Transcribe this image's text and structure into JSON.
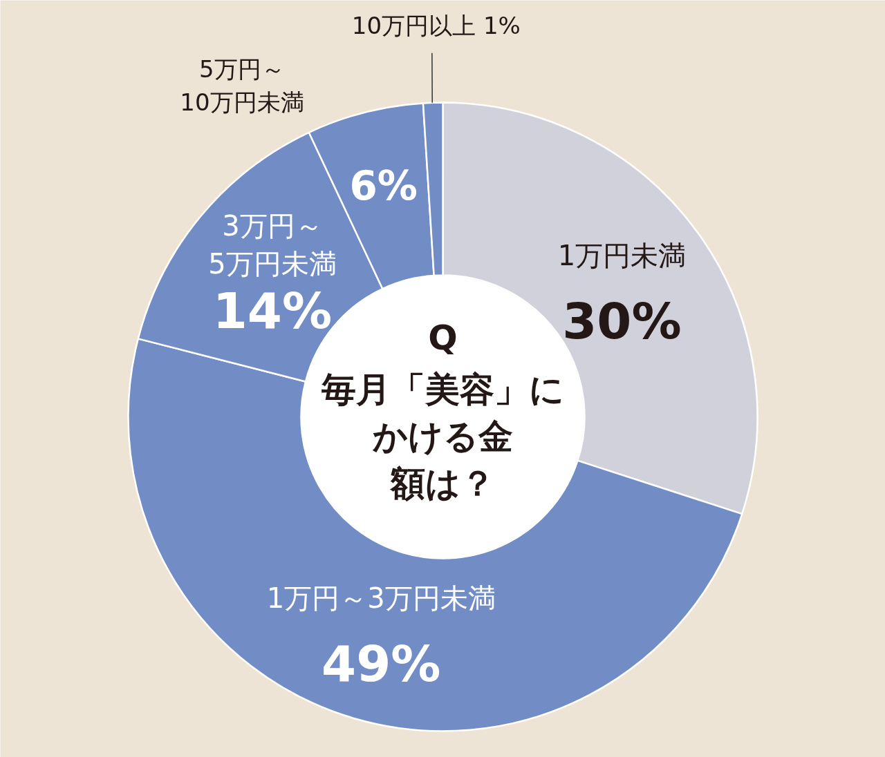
{
  "chart_data": {
    "type": "donut",
    "title": "Q",
    "subtitle": "毎月「美容」にかける金額は？",
    "categories": [
      "1万円未満",
      "1万円～3万円未満",
      "3万円～5万円未満",
      "5万円～10万円未満",
      "10万円以上"
    ],
    "values": [
      30,
      49,
      14,
      6,
      1
    ],
    "colors": [
      "#d0d1da",
      "#728dc6",
      "#728dc6",
      "#728dc6",
      "#728dc6"
    ],
    "value_labels": [
      "30%",
      "49%",
      "14%",
      "6%",
      "1%"
    ]
  }
}
